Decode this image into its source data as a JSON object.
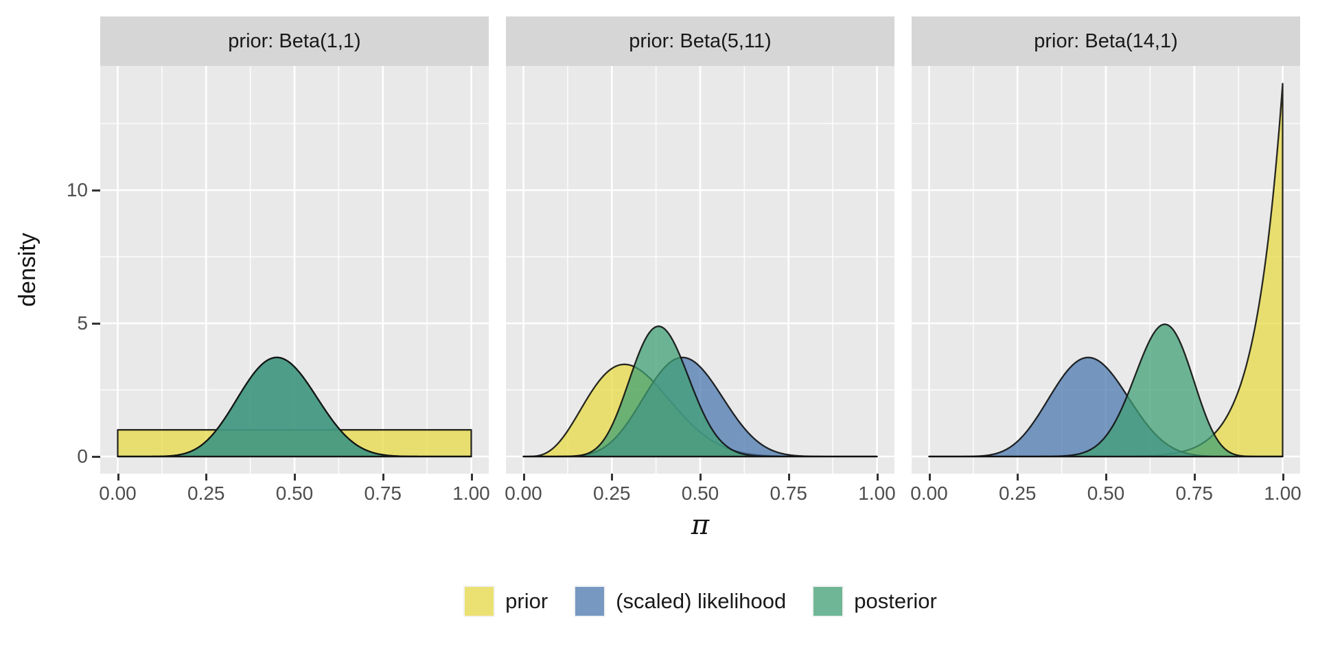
{
  "style": {
    "panel_bg": "#e9e9e9",
    "strip_bg": "#d6d6d6",
    "grid_major_color": "#ffffff",
    "grid_minor_color": "rgba(255,255,255,0.85)",
    "curve_outline_color": "rgba(17,17,17,0.9)",
    "fill_opacity": 0.74,
    "series_colors": {
      "prior": "#e8da45",
      "likelihood": "#4a78b0",
      "posterior": "#41a076"
    }
  },
  "axes": {
    "x": {
      "title": "π",
      "tick_labels": [
        "0.00",
        "0.25",
        "0.50",
        "0.75",
        "1.00"
      ],
      "tick_values": [
        0,
        0.25,
        0.5,
        0.75,
        1
      ],
      "minor_values": [
        0.125,
        0.375,
        0.625,
        0.875
      ],
      "range": [
        0,
        1
      ]
    },
    "y": {
      "title": "density",
      "tick_labels": [
        "0",
        "5",
        "10"
      ],
      "tick_values": [
        0,
        5,
        10
      ],
      "minor_values": [
        2.5,
        7.5,
        12.5
      ],
      "range": [
        0,
        14.7
      ]
    }
  },
  "legend": {
    "position": "bottom",
    "items": [
      {
        "id": "prior",
        "label": "prior"
      },
      {
        "id": "likelihood",
        "label": "(scaled) likelihood"
      },
      {
        "id": "posterior",
        "label": "posterior"
      }
    ]
  },
  "chart_data": {
    "type": "area",
    "grid": true,
    "xlabel": "π",
    "ylabel": "density",
    "xlim": [
      0,
      1
    ],
    "ylim": [
      0,
      14.7
    ],
    "x": [
      0,
      0.1,
      0.2,
      0.3,
      0.4,
      0.5,
      0.6,
      0.7,
      0.8,
      0.9,
      1
    ],
    "facets": [
      {
        "strip_label": "prior: Beta(1,1)",
        "curves": [
          {
            "series": "prior",
            "beta": [
              1,
              1
            ],
            "peak": {
              "x": null,
              "density": 1
            },
            "y": [
              1,
              1,
              1,
              1,
              1,
              1,
              1,
              1,
              1,
              1,
              1
            ]
          },
          {
            "series": "likelihood",
            "beta": [
              10,
              12
            ],
            "peak": {
              "x": 0.45,
              "density": 3.72
            },
            "y": [
              0,
              0,
              0.16,
              1.37,
              3.35,
              3.36,
              1.49,
              0.25,
              0.01,
              0,
              0
            ]
          },
          {
            "series": "posterior",
            "beta": [
              10,
              12
            ],
            "peak": {
              "x": 0.45,
              "density": 3.72
            },
            "y": [
              0,
              0,
              0.16,
              1.37,
              3.35,
              3.36,
              1.49,
              0.25,
              0.01,
              0,
              0
            ]
          }
        ]
      },
      {
        "strip_label": "prior: Beta(5,11)",
        "curves": [
          {
            "series": "prior",
            "beta": [
              5,
              11
            ],
            "peak": {
              "x": 0.286,
              "density": 3.46
            },
            "y": [
              0,
              0.52,
              2.58,
              3.44,
              2.32,
              0.92,
              0.2,
              0.02,
              0,
              0,
              0
            ]
          },
          {
            "series": "likelihood",
            "beta": [
              10,
              12
            ],
            "peak": {
              "x": 0.45,
              "density": 3.72
            },
            "y": [
              0,
              0,
              0.16,
              1.37,
              3.35,
              3.36,
              1.49,
              0.25,
              0.01,
              0,
              0
            ]
          },
          {
            "series": "posterior",
            "beta": [
              14,
              22
            ],
            "peak": {
              "x": 0.382,
              "density": 4.88
            },
            "y": [
              0,
              0,
              0.25,
              2.89,
              4.78,
              1.89,
              0.19,
              0,
              0,
              0,
              0
            ]
          }
        ]
      },
      {
        "strip_label": "prior: Beta(14,1)",
        "curves": [
          {
            "series": "prior",
            "beta": [
              14,
              1
            ],
            "peak": {
              "x": 1,
              "density": 14
            },
            "y": [
              0,
              0,
              0,
              0,
              0,
              0,
              0.02,
              0.14,
              0.77,
              3.56,
              14
            ]
          },
          {
            "series": "likelihood",
            "beta": [
              10,
              12
            ],
            "peak": {
              "x": 0.45,
              "density": 3.72
            },
            "y": [
              0,
              0,
              0.16,
              1.37,
              3.35,
              3.36,
              1.49,
              0.25,
              0.01,
              0,
              0
            ]
          },
          {
            "series": "posterior",
            "beta": [
              23,
              12
            ],
            "peak": {
              "x": 0.667,
              "density": 4.95
            },
            "y": [
              0,
              0,
              0,
              0,
              0.04,
              0.77,
              3.63,
              4.56,
              0.99,
              0.01,
              0
            ]
          }
        ]
      }
    ]
  }
}
